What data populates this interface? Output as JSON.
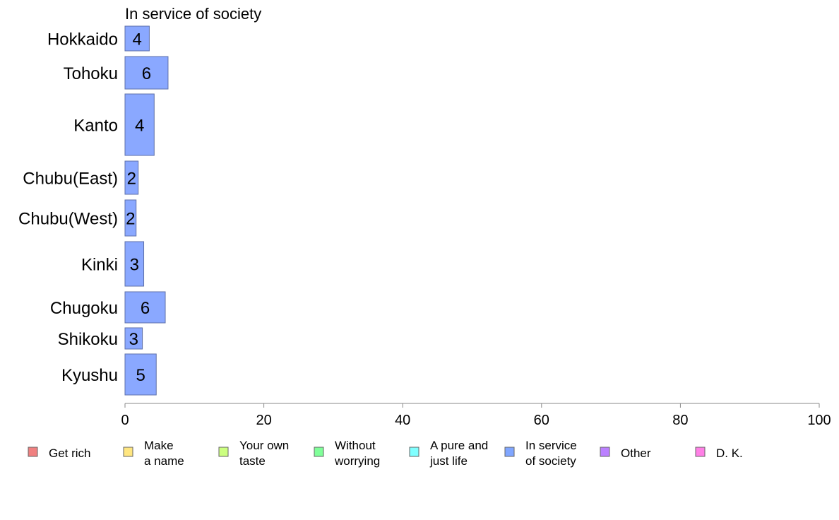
{
  "chart_data": {
    "type": "bar",
    "orientation": "horizontal",
    "title": "In service of society",
    "categories": [
      "Hokkaido",
      "Tohoku",
      "Kanto",
      "Chubu(East)",
      "Chubu(West)",
      "Kinki",
      "Chugoku",
      "Shikoku",
      "Kyushu"
    ],
    "values": [
      3.5,
      6.2,
      4.2,
      1.9,
      1.6,
      2.7,
      5.8,
      2.5,
      4.5
    ],
    "labels": [
      "4",
      "6",
      "4",
      "2",
      "2",
      "3",
      "6",
      "3",
      "5"
    ],
    "xlim": [
      0,
      100
    ],
    "xticks": [
      0,
      20,
      40,
      60,
      80,
      100
    ],
    "bar_color": "#8aa8ff",
    "bar_edge_color": "#5d6fa8",
    "axis_color": "#888888",
    "grid": false,
    "legend_position": "bottom",
    "legend": [
      {
        "label": [
          "Get rich"
        ],
        "color": "#f08080"
      },
      {
        "label": [
          "Make",
          "a name"
        ],
        "color": "#ffe680"
      },
      {
        "label": [
          "Your own",
          "taste"
        ],
        "color": "#ccff80"
      },
      {
        "label": [
          "Without",
          "worrying"
        ],
        "color": "#80ff99"
      },
      {
        "label": [
          "A pure and",
          "just life"
        ],
        "color": "#80ffff"
      },
      {
        "label": [
          "In service",
          "of society"
        ],
        "color": "#80a6ff"
      },
      {
        "label": [
          "Other"
        ],
        "color": "#bb80ff"
      },
      {
        "label": [
          "D. K."
        ],
        "color": "#ff80e6"
      }
    ]
  }
}
